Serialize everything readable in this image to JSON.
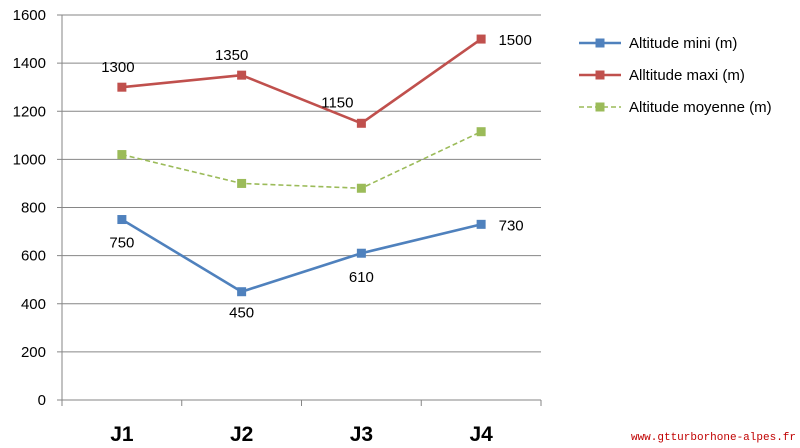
{
  "chart_data": {
    "type": "line",
    "categories": [
      "J1",
      "J2",
      "J3",
      "J4"
    ],
    "ylim": [
      0,
      1600
    ],
    "yticks": [
      0,
      200,
      400,
      600,
      800,
      1000,
      1200,
      1400,
      1600
    ],
    "grid": true,
    "legend_position": "right",
    "series": [
      {
        "name": "Altitude mini (m)",
        "values": [
          750,
          450,
          610,
          730
        ],
        "labels": [
          "750",
          "450",
          "610",
          "730"
        ],
        "color": "#4f81bd",
        "dash": "solid"
      },
      {
        "name": "Alltitude maxi (m)",
        "values": [
          1300,
          1350,
          1150,
          1500
        ],
        "labels": [
          "1300",
          "1350",
          "1150",
          "1500"
        ],
        "color": "#c0504d",
        "dash": "solid"
      },
      {
        "name": "Altitude moyenne  (m)",
        "values": [
          1020,
          900,
          880,
          1115
        ],
        "labels": null,
        "color": "#9bbb59",
        "dash": "dashed"
      }
    ]
  },
  "watermark": "www.gtturborhone-alpes.fr"
}
